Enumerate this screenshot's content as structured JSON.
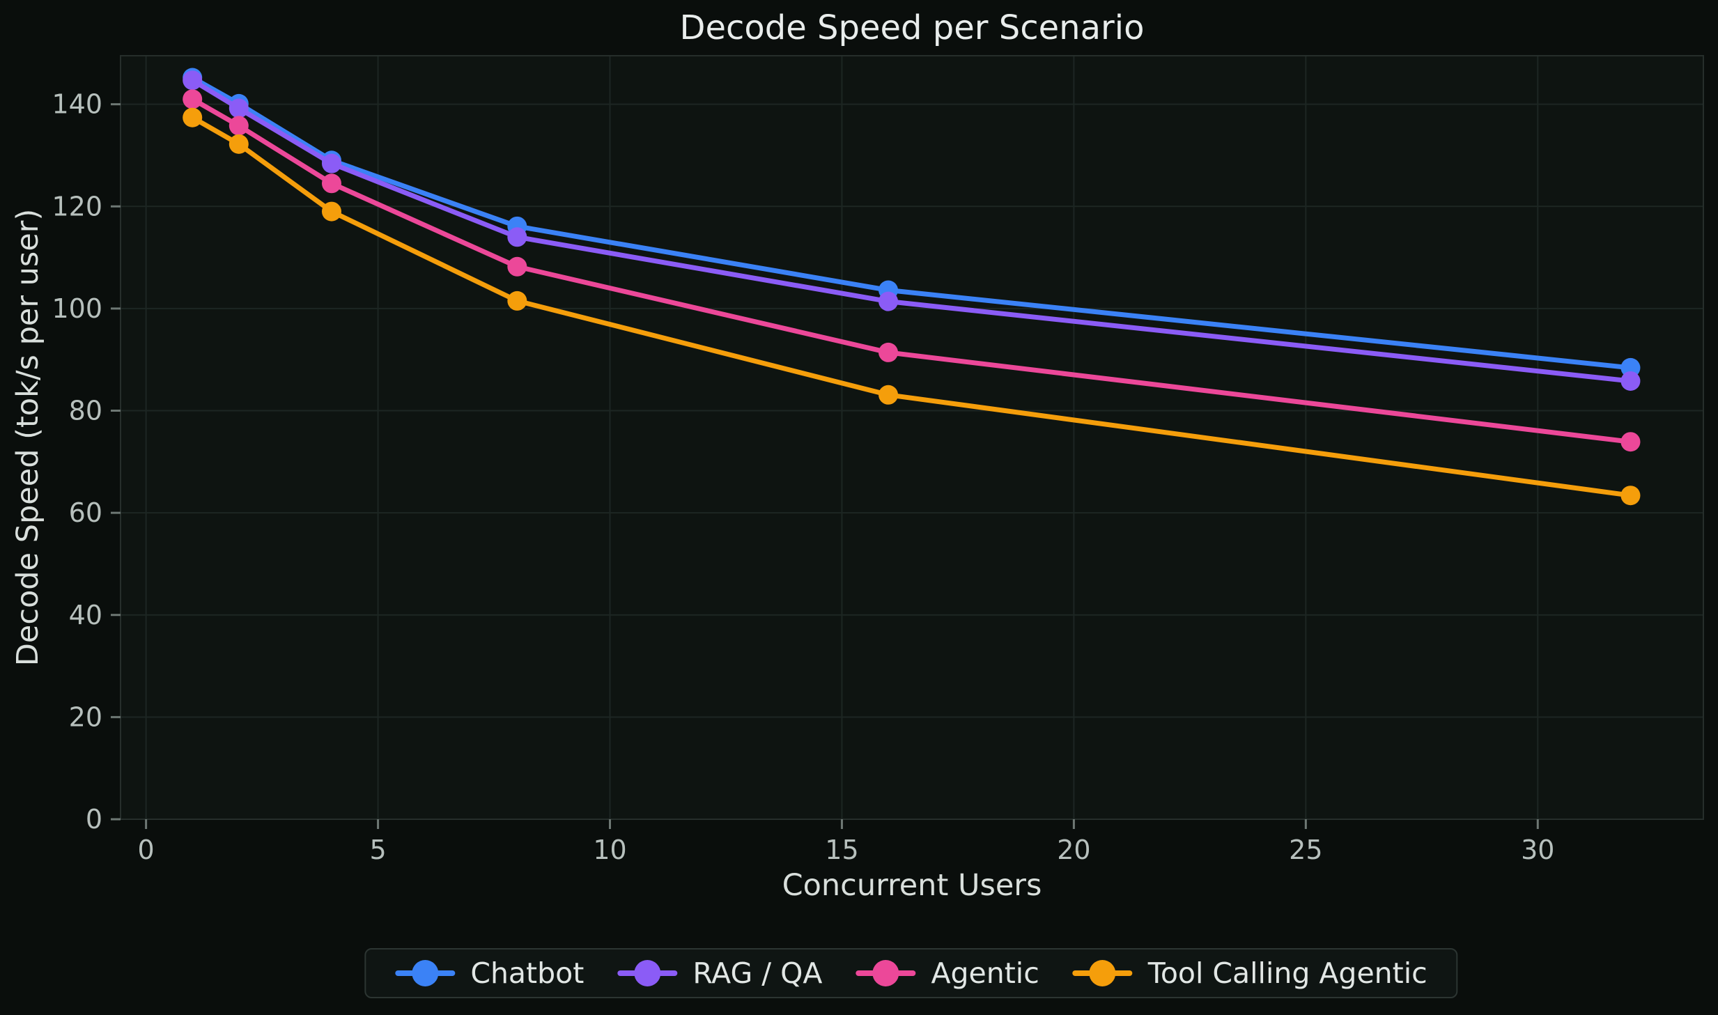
{
  "title": "Decode Speed per Scenario",
  "colors": {
    "figure_bg": "#0a0e0c",
    "plot_bg": "#0e1411",
    "grid": "#1d2623",
    "spine": "#262e2b",
    "tick_mark": "#6e7874",
    "tick_label": "#b7c0bd",
    "title_text": "#e9edec",
    "axis_label_text": "#d9dfdc",
    "legend_text": "#e2e7e5",
    "legend_bg": "#0f1513",
    "legend_border": "#2c3532"
  },
  "chart_data": {
    "type": "line",
    "title": "Decode Speed per Scenario",
    "xlabel": "Concurrent Users",
    "ylabel": "Decode Speed (tok/s per user)",
    "x": [
      1,
      2,
      4,
      8,
      16,
      32
    ],
    "series": [
      {
        "name": "Chatbot",
        "color": "#3b82f6",
        "values": [
          145.2,
          140.1,
          129.0,
          116.1,
          103.6,
          88.4
        ]
      },
      {
        "name": "RAG / QA",
        "color": "#8b5cf6",
        "values": [
          144.7,
          139.2,
          128.4,
          114.0,
          101.4,
          85.8
        ]
      },
      {
        "name": "Agentic",
        "color": "#ec4899",
        "values": [
          141.0,
          135.8,
          124.5,
          108.2,
          91.4,
          73.9
        ]
      },
      {
        "name": "Tool Calling Agentic",
        "color": "#f59e0b",
        "values": [
          137.4,
          132.2,
          119.0,
          101.5,
          83.1,
          63.4
        ]
      }
    ],
    "x_ticks": [
      0,
      5,
      10,
      15,
      20,
      25,
      30
    ],
    "y_ticks": [
      0,
      20,
      40,
      60,
      80,
      100,
      120,
      140
    ],
    "xlim": [
      -0.55,
      33.57
    ],
    "ylim": [
      0,
      149.5
    ],
    "grid": true,
    "legend_position": "bottom-center",
    "marker": "circle",
    "line_width": 7,
    "marker_radius": 14
  }
}
